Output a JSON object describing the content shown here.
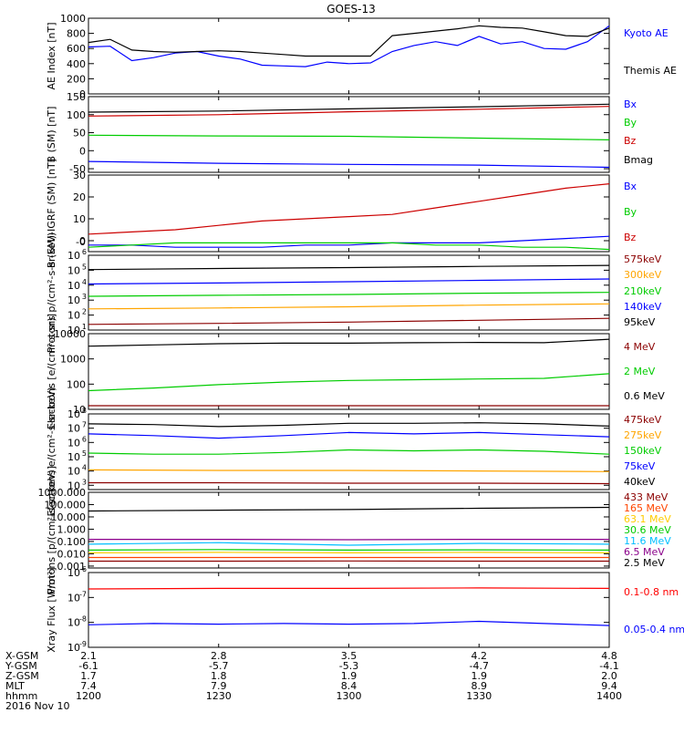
{
  "title": "GOES-13",
  "chart_data": [
    {
      "type": "line",
      "ylabel": "AE Index [nT]",
      "yscale": "linear",
      "ylim": [
        0,
        1000
      ],
      "yticks": [
        0,
        200,
        400,
        600,
        800,
        1000
      ],
      "ytick_labels": [
        "0",
        "200",
        "400",
        "600",
        "800",
        "1000"
      ],
      "grid": false,
      "legend": "right",
      "series": [
        {
          "name": "Kyoto AE",
          "color": "#0000ff",
          "x": [
            1200,
            1205,
            1210,
            1215,
            1220,
            1225,
            1230,
            1235,
            1240,
            1245,
            1250,
            1255,
            1300,
            1305,
            1310,
            1315,
            1320,
            1325,
            1330,
            1335,
            1340,
            1345,
            1350,
            1355,
            1400
          ],
          "y": [
            620,
            630,
            440,
            480,
            540,
            560,
            500,
            460,
            380,
            370,
            360,
            420,
            400,
            410,
            560,
            640,
            690,
            640,
            760,
            660,
            690,
            600,
            590,
            690,
            900
          ]
        },
        {
          "name": "Themis AE",
          "color": "#000000",
          "x": [
            1200,
            1205,
            1210,
            1215,
            1220,
            1225,
            1230,
            1235,
            1240,
            1245,
            1250,
            1255,
            1300,
            1305,
            1310,
            1315,
            1320,
            1325,
            1330,
            1335,
            1340,
            1345,
            1350,
            1355,
            1400
          ],
          "y": [
            680,
            720,
            580,
            560,
            550,
            560,
            570,
            560,
            540,
            520,
            500,
            500,
            500,
            500,
            770,
            800,
            830,
            860,
            900,
            880,
            870,
            820,
            770,
            760,
            870
          ]
        }
      ]
    },
    {
      "type": "line",
      "ylabel": "B (SM) [nT]",
      "yscale": "linear",
      "ylim": [
        -60,
        150
      ],
      "yticks": [
        -50,
        0,
        50,
        100,
        150
      ],
      "ytick_labels": [
        "-50",
        "0",
        "50",
        "100",
        "150"
      ],
      "grid": false,
      "legend": "right",
      "series": [
        {
          "name": "Bx",
          "color": "#0000ff",
          "x": [
            1200,
            1230,
            1300,
            1330,
            1400
          ],
          "y": [
            -30,
            -35,
            -38,
            -40,
            -46
          ]
        },
        {
          "name": "By",
          "color": "#00cc00",
          "x": [
            1200,
            1230,
            1300,
            1330,
            1400
          ],
          "y": [
            43,
            41,
            40,
            35,
            30
          ]
        },
        {
          "name": "Bz",
          "color": "#cc0000",
          "x": [
            1200,
            1230,
            1300,
            1330,
            1400
          ],
          "y": [
            96,
            100,
            108,
            115,
            123
          ]
        },
        {
          "name": "Bmag",
          "color": "#000000",
          "x": [
            1200,
            1230,
            1300,
            1330,
            1400
          ],
          "y": [
            107,
            110,
            116,
            122,
            129
          ]
        }
      ]
    },
    {
      "type": "line",
      "ylabel": "B (SM)-IGRF (SM) [nT]",
      "yscale": "linear",
      "ylim": [
        -5,
        30
      ],
      "yticks": [
        0,
        10,
        20,
        30
      ],
      "ytick_labels": [
        "0",
        "10",
        "20",
        "30"
      ],
      "extra_tick_labels": [
        {
          "value": -0.5,
          "label": "-0"
        }
      ],
      "grid": false,
      "legend": "right",
      "series": [
        {
          "name": "Bx",
          "color": "#0000ff",
          "x": [
            1200,
            1210,
            1220,
            1230,
            1240,
            1250,
            1300,
            1310,
            1320,
            1330,
            1340,
            1350,
            1400
          ],
          "y": [
            -2,
            -2,
            -3,
            -3,
            -3,
            -2,
            -2,
            -1,
            -1,
            -1,
            0,
            1,
            2
          ]
        },
        {
          "name": "By",
          "color": "#00cc00",
          "x": [
            1200,
            1210,
            1220,
            1230,
            1240,
            1250,
            1300,
            1310,
            1320,
            1330,
            1340,
            1350,
            1400
          ],
          "y": [
            -3,
            -2,
            -1,
            -1,
            -1,
            -1,
            -1,
            -1,
            -2,
            -2,
            -3,
            -3,
            -4
          ]
        },
        {
          "name": "Bz",
          "color": "#cc0000",
          "x": [
            1200,
            1210,
            1220,
            1230,
            1240,
            1250,
            1300,
            1310,
            1320,
            1330,
            1340,
            1350,
            1400
          ],
          "y": [
            3,
            4,
            5,
            7,
            9,
            10,
            11,
            12,
            15,
            18,
            21,
            24,
            26
          ]
        }
      ]
    },
    {
      "type": "line",
      "ylabel": "Protons p/(cm²-s-sr-keV)",
      "yscale": "log",
      "ylim": [
        10,
        1000000
      ],
      "yticks": [
        10,
        100,
        1000,
        10000,
        100000,
        1000000
      ],
      "ytick_labels": [
        "10",
        "10",
        "10",
        "10",
        "10",
        "10"
      ],
      "ytick_exponents": [
        "1",
        "2",
        "3",
        "4",
        "5",
        "6"
      ],
      "grid": false,
      "legend": "right",
      "series": [
        {
          "name": "575keV",
          "color": "#8b0000",
          "x": [
            1200,
            1230,
            1300,
            1330,
            1400
          ],
          "y": [
            24,
            28,
            34,
            45,
            60
          ]
        },
        {
          "name": "300keV",
          "color": "#ffa500",
          "x": [
            1200,
            1230,
            1300,
            1330,
            1400
          ],
          "y": [
            260,
            300,
            360,
            460,
            560
          ]
        },
        {
          "name": "210keV",
          "color": "#00cc00",
          "x": [
            1200,
            1230,
            1300,
            1330,
            1400
          ],
          "y": [
            1800,
            2100,
            2400,
            2900,
            3300
          ]
        },
        {
          "name": "140keV",
          "color": "#0000ff",
          "x": [
            1200,
            1230,
            1300,
            1330,
            1400
          ],
          "y": [
            12000,
            14000,
            17000,
            21000,
            26000
          ]
        },
        {
          "name": "95keV",
          "color": "#000000",
          "x": [
            1200,
            1230,
            1300,
            1330,
            1400
          ],
          "y": [
            110000,
            130000,
            150000,
            180000,
            210000
          ]
        }
      ]
    },
    {
      "type": "line",
      "ylabel": "Electrons [e/(cm²-s-sr)]",
      "yscale": "log",
      "ylim": [
        10,
        10000
      ],
      "yticks": [
        10,
        100,
        1000,
        10000
      ],
      "ytick_labels": [
        "10",
        "100",
        "1000",
        "10000"
      ],
      "grid": false,
      "legend": "right",
      "series": [
        {
          "name": "4 MeV",
          "color": "#8b0000",
          "x": [
            1200,
            1230,
            1300,
            1330,
            1400
          ],
          "y": [
            14,
            14,
            14,
            14,
            14
          ]
        },
        {
          "name": "2 MeV",
          "color": "#00cc00",
          "x": [
            1200,
            1215,
            1230,
            1245,
            1300,
            1315,
            1330,
            1345,
            1400
          ],
          "y": [
            55,
            70,
            95,
            120,
            140,
            150,
            160,
            170,
            260
          ]
        },
        {
          "name": "0.6 MeV",
          "color": "#000000",
          "x": [
            1200,
            1215,
            1230,
            1245,
            1300,
            1315,
            1330,
            1345,
            1400
          ],
          "y": [
            3200,
            3600,
            4000,
            4200,
            4200,
            4400,
            4500,
            4400,
            6000
          ]
        }
      ]
    },
    {
      "type": "line",
      "ylabel": "Electrons e/(cm²-s-sr-keV)",
      "yscale": "log",
      "ylim": [
        500,
        100000000
      ],
      "yticks": [
        1000,
        10000,
        100000,
        1000000,
        10000000,
        100000000
      ],
      "ytick_labels": [
        "10",
        "10",
        "10",
        "10",
        "10",
        "10"
      ],
      "ytick_exponents": [
        "3",
        "4",
        "5",
        "6",
        "7",
        "8"
      ],
      "grid": false,
      "legend": "right",
      "series": [
        {
          "name": "475keV",
          "color": "#8b0000",
          "x": [
            1200,
            1230,
            1300,
            1330,
            1400
          ],
          "y": [
            1500,
            1500,
            1400,
            1400,
            1300
          ]
        },
        {
          "name": "275keV",
          "color": "#ffa500",
          "x": [
            1200,
            1230,
            1300,
            1330,
            1400
          ],
          "y": [
            12000,
            11000,
            11000,
            10000,
            9000
          ]
        },
        {
          "name": "150keV",
          "color": "#00cc00",
          "x": [
            1200,
            1215,
            1230,
            1245,
            1300,
            1315,
            1330,
            1345,
            1400
          ],
          "y": [
            180000,
            150000,
            150000,
            200000,
            300000,
            260000,
            300000,
            240000,
            150000
          ]
        },
        {
          "name": "75keV",
          "color": "#0000ff",
          "x": [
            1200,
            1215,
            1230,
            1245,
            1300,
            1315,
            1330,
            1345,
            1400
          ],
          "y": [
            4000000,
            3000000,
            2000000,
            3000000,
            5000000,
            4000000,
            5000000,
            3500000,
            2500000
          ]
        },
        {
          "name": "40keV",
          "color": "#000000",
          "x": [
            1200,
            1215,
            1230,
            1245,
            1300,
            1315,
            1330,
            1345,
            1400
          ],
          "y": [
            20000000,
            18000000,
            13000000,
            16000000,
            22000000,
            22000000,
            24000000,
            20000000,
            14000000
          ]
        }
      ]
    },
    {
      "type": "line",
      "ylabel": "Protons [p/(cm²-s-sr-keV)]",
      "yscale": "log",
      "ylim": [
        0.0007,
        1000
      ],
      "yticks": [
        0.001,
        0.01,
        0.1,
        1,
        10,
        100,
        1000
      ],
      "ytick_labels": [
        "0.001",
        "0.010",
        "0.100",
        "1.000",
        "10.000",
        "100.000",
        "1000.000"
      ],
      "grid": false,
      "legend": "right",
      "series": [
        {
          "name": "433 MeV",
          "color": "#8b0000",
          "x": [
            1200,
            1230,
            1300,
            1330,
            1400
          ],
          "y": [
            0.0025,
            0.0025,
            0.0026,
            0.0025,
            0.0025
          ]
        },
        {
          "name": "165 MeV",
          "color": "#ff4500",
          "x": [
            1200,
            1230,
            1300,
            1330,
            1400
          ],
          "y": [
            0.005,
            0.005,
            0.005,
            0.005,
            0.005
          ]
        },
        {
          "name": "63.1 MeV",
          "color": "#ffcc00",
          "x": [
            1200,
            1230,
            1300,
            1330,
            1400
          ],
          "y": [
            0.012,
            0.013,
            0.012,
            0.013,
            0.012
          ]
        },
        {
          "name": "30.6 MeV",
          "color": "#00cc00",
          "x": [
            1200,
            1230,
            1300,
            1330,
            1400
          ],
          "y": [
            0.02,
            0.022,
            0.02,
            0.021,
            0.02
          ]
        },
        {
          "name": "11.6 MeV",
          "color": "#00bfff",
          "x": [
            1200,
            1230,
            1300,
            1330,
            1400
          ],
          "y": [
            0.06,
            0.08,
            0.05,
            0.07,
            0.06
          ]
        },
        {
          "name": "6.5 MeV",
          "color": "#8b008b",
          "x": [
            1200,
            1230,
            1300,
            1330,
            1400
          ],
          "y": [
            0.15,
            0.15,
            0.14,
            0.15,
            0.15
          ]
        },
        {
          "name": "2.5 MeV",
          "color": "#000000",
          "x": [
            1200,
            1230,
            1300,
            1330,
            1400
          ],
          "y": [
            30,
            35,
            40,
            50,
            60
          ]
        }
      ]
    },
    {
      "type": "line",
      "ylabel": "Xray Flux [W/m²]",
      "yscale": "log",
      "ylim": [
        1e-09,
        1e-06
      ],
      "yticks": [
        1e-09,
        1e-08,
        1e-07,
        1e-06
      ],
      "ytick_labels": [
        "10",
        "10",
        "10",
        "10"
      ],
      "ytick_exponents": [
        "-9",
        "-8",
        "-7",
        "-6"
      ],
      "grid": false,
      "legend": "right",
      "series": [
        {
          "name": "0.1-0.8 nm",
          "color": "#ff0000",
          "x": [
            1200,
            1230,
            1300,
            1330,
            1400
          ],
          "y": [
            2.2e-07,
            2.3e-07,
            2.3e-07,
            2.4e-07,
            2.3e-07
          ]
        },
        {
          "name": "0.05-0.4 nm",
          "color": "#0000ff",
          "x": [
            1200,
            1215,
            1230,
            1245,
            1300,
            1315,
            1330,
            1345,
            1400
          ],
          "y": [
            8e-09,
            9e-09,
            8.5e-09,
            9e-09,
            8.5e-09,
            9e-09,
            1.1e-08,
            9e-09,
            7.5e-09
          ]
        }
      ]
    }
  ],
  "time_axis": {
    "row_labels": [
      "X-GSM",
      "Y-GSM",
      "Z-GSM",
      "MLT",
      "hhmm"
    ],
    "columns": [
      {
        "x": 1200,
        "values": [
          "2.1",
          "-6.1",
          "1.7",
          "7.4",
          "1200"
        ]
      },
      {
        "x": 1230,
        "values": [
          "2.8",
          "-5.7",
          "1.8",
          "7.9",
          "1230"
        ]
      },
      {
        "x": 1300,
        "values": [
          "3.5",
          "-5.3",
          "1.9",
          "8.4",
          "1300"
        ]
      },
      {
        "x": 1330,
        "values": [
          "4.2",
          "-4.7",
          "1.9",
          "8.9",
          "1330"
        ]
      },
      {
        "x": 1400,
        "values": [
          "4.8",
          "-4.1",
          "2.0",
          "9.4",
          "1400"
        ]
      }
    ],
    "date": "2016 Nov 10"
  }
}
